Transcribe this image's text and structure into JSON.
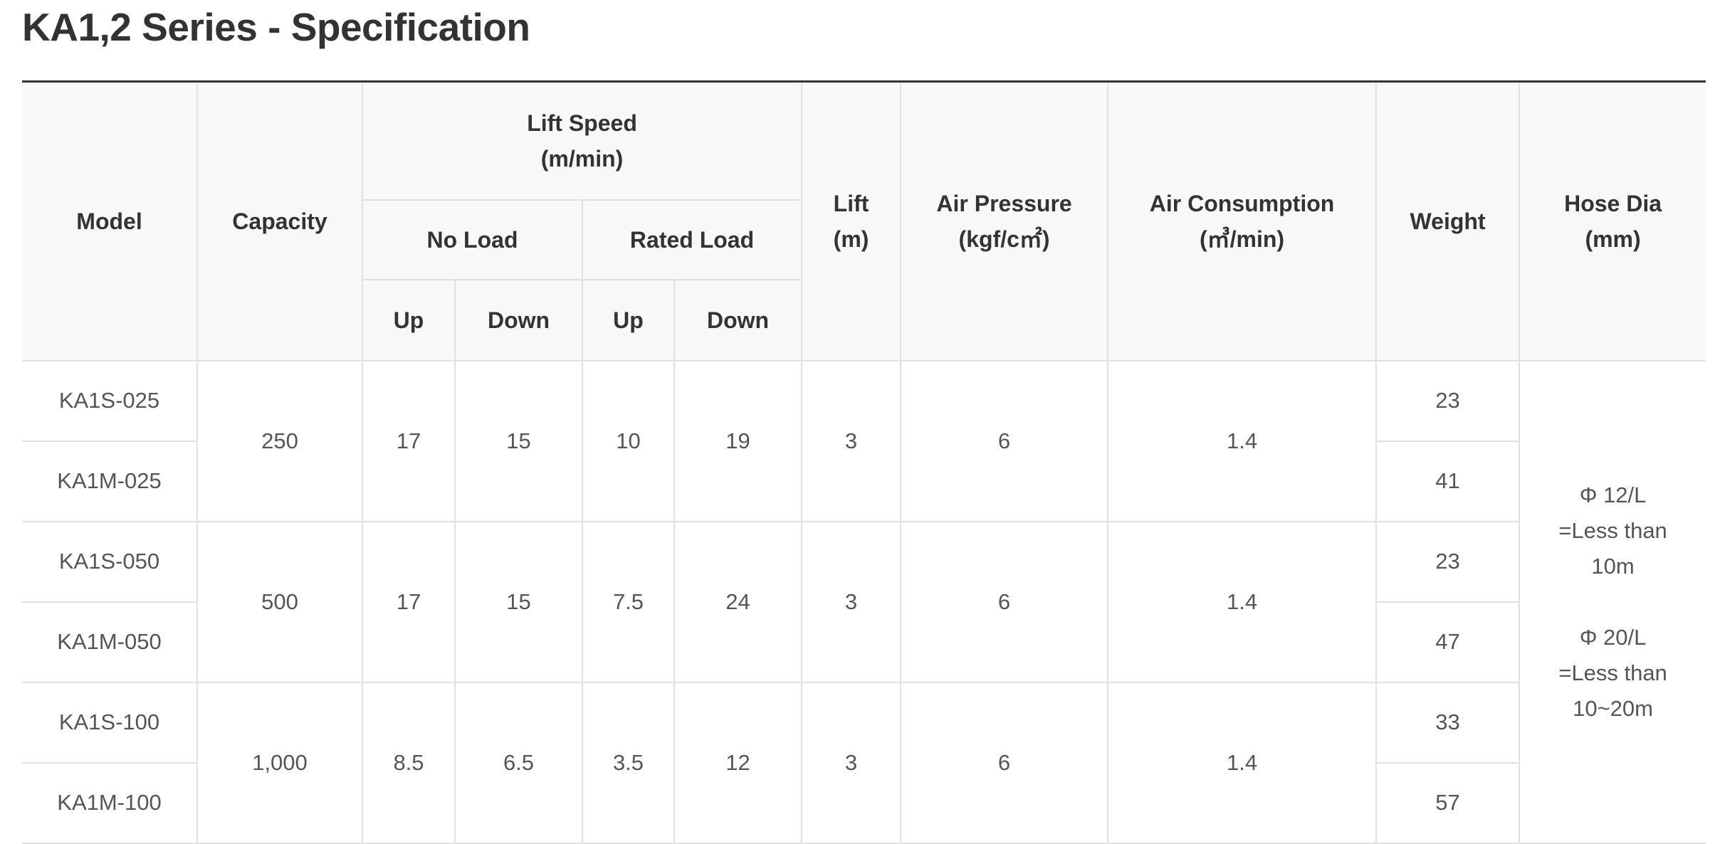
{
  "title": "KA1,2 Series - Specification",
  "header": {
    "model": "Model",
    "capacity": "Capacity",
    "lift_speed": "Lift Speed\n(m/min)",
    "no_load": "No Load",
    "rated_load": "Rated Load",
    "up": "Up",
    "down": "Down",
    "lift": "Lift\n(m)",
    "air_pressure": "Air Pressure\n(kgf/c㎡)",
    "air_consumption": "Air Consumption\n(㎥/min)",
    "weight": "Weight",
    "hose_dia": "Hose Dia\n(mm)"
  },
  "groups": [
    {
      "capacity": "250",
      "no_load_up": "17",
      "no_load_down": "15",
      "rated_up": "10",
      "rated_down": "19",
      "lift": "3",
      "air_pressure": "6",
      "air_consumption": "1.4",
      "models": [
        {
          "model": "KA1S-025",
          "weight": "23"
        },
        {
          "model": "KA1M-025",
          "weight": "41"
        }
      ]
    },
    {
      "capacity": "500",
      "no_load_up": "17",
      "no_load_down": "15",
      "rated_up": "7.5",
      "rated_down": "24",
      "lift": "3",
      "air_pressure": "6",
      "air_consumption": "1.4",
      "models": [
        {
          "model": "KA1S-050",
          "weight": "23"
        },
        {
          "model": "KA1M-050",
          "weight": "47"
        }
      ]
    },
    {
      "capacity": "1,000",
      "no_load_up": "8.5",
      "no_load_down": "6.5",
      "rated_up": "3.5",
      "rated_down": "12",
      "lift": "3",
      "air_pressure": "6",
      "air_consumption": "1.4",
      "models": [
        {
          "model": "KA1S-100",
          "weight": "33"
        },
        {
          "model": "KA1M-100",
          "weight": "57"
        }
      ]
    }
  ],
  "hose_dia_value": "Φ 12/L\n=Less than\n10m\n\nΦ 20/L\n=Less than\n10~20m"
}
